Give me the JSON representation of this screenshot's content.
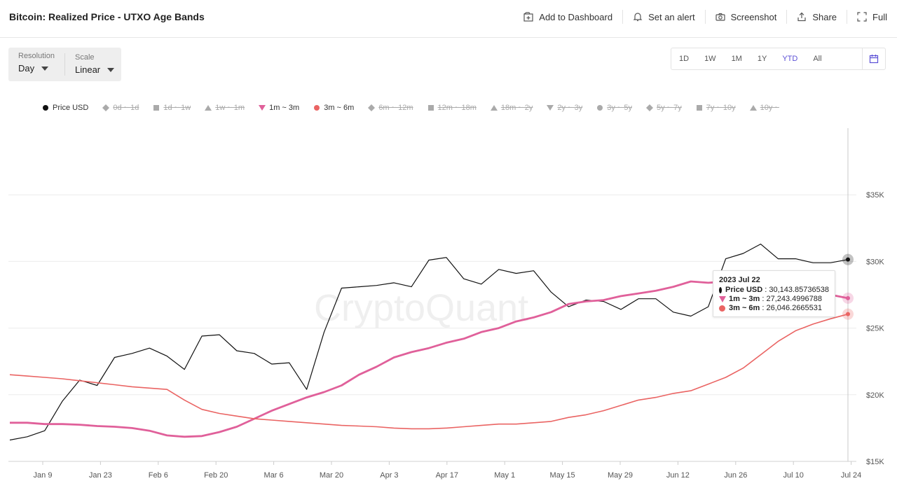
{
  "header": {
    "title": "Bitcoin: Realized Price - UTXO Age Bands",
    "actions": {
      "add_dashboard": "Add to Dashboard",
      "alert": "Set an alert",
      "screenshot": "Screenshot",
      "share": "Share",
      "full": "Full"
    }
  },
  "controls": {
    "resolution_label": "Resolution",
    "resolution_value": "Day",
    "scale_label": "Scale",
    "scale_value": "Linear"
  },
  "ranges": [
    "1D",
    "1W",
    "1M",
    "1Y",
    "YTD",
    "All"
  ],
  "active_range": "YTD",
  "legend": [
    {
      "label": "Price USD",
      "marker": "circle",
      "color": "#111111",
      "active": true
    },
    {
      "label": "0d ~ 1d",
      "marker": "diamond",
      "color": "#aaaaaa",
      "active": false
    },
    {
      "label": "1d ~ 1w",
      "marker": "square",
      "color": "#aaaaaa",
      "active": false
    },
    {
      "label": "1w ~ 1m",
      "marker": "triangle-up",
      "color": "#aaaaaa",
      "active": false
    },
    {
      "label": "1m ~ 3m",
      "marker": "triangle-down",
      "color": "#e0609a",
      "active": true
    },
    {
      "label": "3m ~ 6m",
      "marker": "circle",
      "color": "#ea6463",
      "active": true
    },
    {
      "label": "6m ~ 12m",
      "marker": "diamond",
      "color": "#aaaaaa",
      "active": false
    },
    {
      "label": "12m ~ 18m",
      "marker": "square",
      "color": "#aaaaaa",
      "active": false
    },
    {
      "label": "18m ~ 2y",
      "marker": "triangle-up",
      "color": "#aaaaaa",
      "active": false
    },
    {
      "label": "2y ~ 3y",
      "marker": "triangle-down",
      "color": "#aaaaaa",
      "active": false
    },
    {
      "label": "3y ~ 5y",
      "marker": "circle",
      "color": "#aaaaaa",
      "active": false
    },
    {
      "label": "5y ~ 7y",
      "marker": "diamond",
      "color": "#aaaaaa",
      "active": false
    },
    {
      "label": "7y ~ 10y",
      "marker": "square",
      "color": "#aaaaaa",
      "active": false
    },
    {
      "label": "10y ~",
      "marker": "triangle-up",
      "color": "#aaaaaa",
      "active": false
    }
  ],
  "watermark": "CryptoQuant",
  "tooltip": {
    "date": "2023 Jul 22",
    "rows": [
      {
        "name": "Price USD",
        "value": "30,143.85736538",
        "color": "#111111",
        "marker": "circle"
      },
      {
        "name": "1m ~ 3m",
        "value": "27,243.4996788",
        "color": "#e0609a",
        "marker": "triangle-down"
      },
      {
        "name": "3m ~ 6m",
        "value": "26,046.2665531",
        "color": "#ea6463",
        "marker": "circle"
      }
    ]
  },
  "chart_data": {
    "type": "line",
    "x_tick_labels": [
      "Jan 9",
      "Jan 23",
      "Feb 6",
      "Feb 20",
      "Mar 6",
      "Mar 20",
      "Apr 3",
      "Apr 17",
      "May 1",
      "May 15",
      "May 29",
      "Jun 12",
      "Jun 26",
      "Jul 10",
      "Jul 24"
    ],
    "y_tick_labels": [
      "$15K",
      "$20K",
      "$25K",
      "$30K",
      "$35K"
    ],
    "ylim": [
      15000,
      40000
    ],
    "grid": true,
    "x": [
      "Jan 1",
      "Jan 5",
      "Jan 9",
      "Jan 12",
      "Jan 14",
      "Jan 18",
      "Jan 23",
      "Jan 28",
      "Feb 2",
      "Feb 6",
      "Feb 10",
      "Feb 14",
      "Feb 18",
      "Feb 22",
      "Feb 27",
      "Mar 3",
      "Mar 6",
      "Mar 10",
      "Mar 14",
      "Mar 18",
      "Mar 22",
      "Mar 26",
      "Mar 31",
      "Apr 3",
      "Apr 7",
      "Apr 12",
      "Apr 17",
      "Apr 21",
      "Apr 25",
      "Apr 30",
      "May 1",
      "May 5",
      "May 10",
      "May 15",
      "May 20",
      "May 25",
      "May 29",
      "Jun 2",
      "Jun 7",
      "Jun 12",
      "Jun 16",
      "Jun 21",
      "Jun 26",
      "Jun 30",
      "Jul 5",
      "Jul 10",
      "Jul 15",
      "Jul 20",
      "Jul 22"
    ],
    "series": [
      {
        "name": "Price USD",
        "color": "#111111",
        "values": [
          16600,
          16850,
          17300,
          19500,
          21100,
          20700,
          22800,
          23100,
          23500,
          22900,
          21900,
          24400,
          24500,
          23300,
          23100,
          22300,
          22400,
          20400,
          24700,
          28000,
          28100,
          28200,
          28400,
          28100,
          30100,
          30300,
          28700,
          28300,
          29400,
          29100,
          29300,
          27700,
          26600,
          27100,
          27000,
          26400,
          27200,
          27200,
          26200,
          25900,
          26600,
          30200,
          30600,
          31300,
          30200,
          30200,
          29900,
          29900,
          30143.86
        ]
      },
      {
        "name": "1m ~ 3m",
        "color": "#e0609a",
        "values": [
          17900,
          17900,
          17800,
          17800,
          17750,
          17650,
          17600,
          17500,
          17300,
          16950,
          16850,
          16900,
          17200,
          17600,
          18200,
          18800,
          19300,
          19800,
          20200,
          20700,
          21500,
          22100,
          22800,
          23200,
          23500,
          23900,
          24200,
          24700,
          25000,
          25500,
          25800,
          26200,
          26800,
          27000,
          27100,
          27400,
          27600,
          27800,
          28100,
          28500,
          28400,
          28500,
          28600,
          28600,
          28400,
          28000,
          27800,
          27500,
          27243.5
        ]
      },
      {
        "name": "3m ~ 6m",
        "color": "#ea6463",
        "values": [
          21500,
          21400,
          21300,
          21200,
          21050,
          20900,
          20750,
          20600,
          20500,
          20400,
          19600,
          18900,
          18600,
          18400,
          18200,
          18100,
          18000,
          17900,
          17800,
          17700,
          17650,
          17600,
          17500,
          17450,
          17450,
          17500,
          17600,
          17700,
          17800,
          17800,
          17900,
          18000,
          18300,
          18500,
          18800,
          19200,
          19600,
          19800,
          20100,
          20300,
          20800,
          21300,
          22000,
          23000,
          24000,
          24800,
          25300,
          25700,
          26046.27
        ]
      }
    ]
  }
}
